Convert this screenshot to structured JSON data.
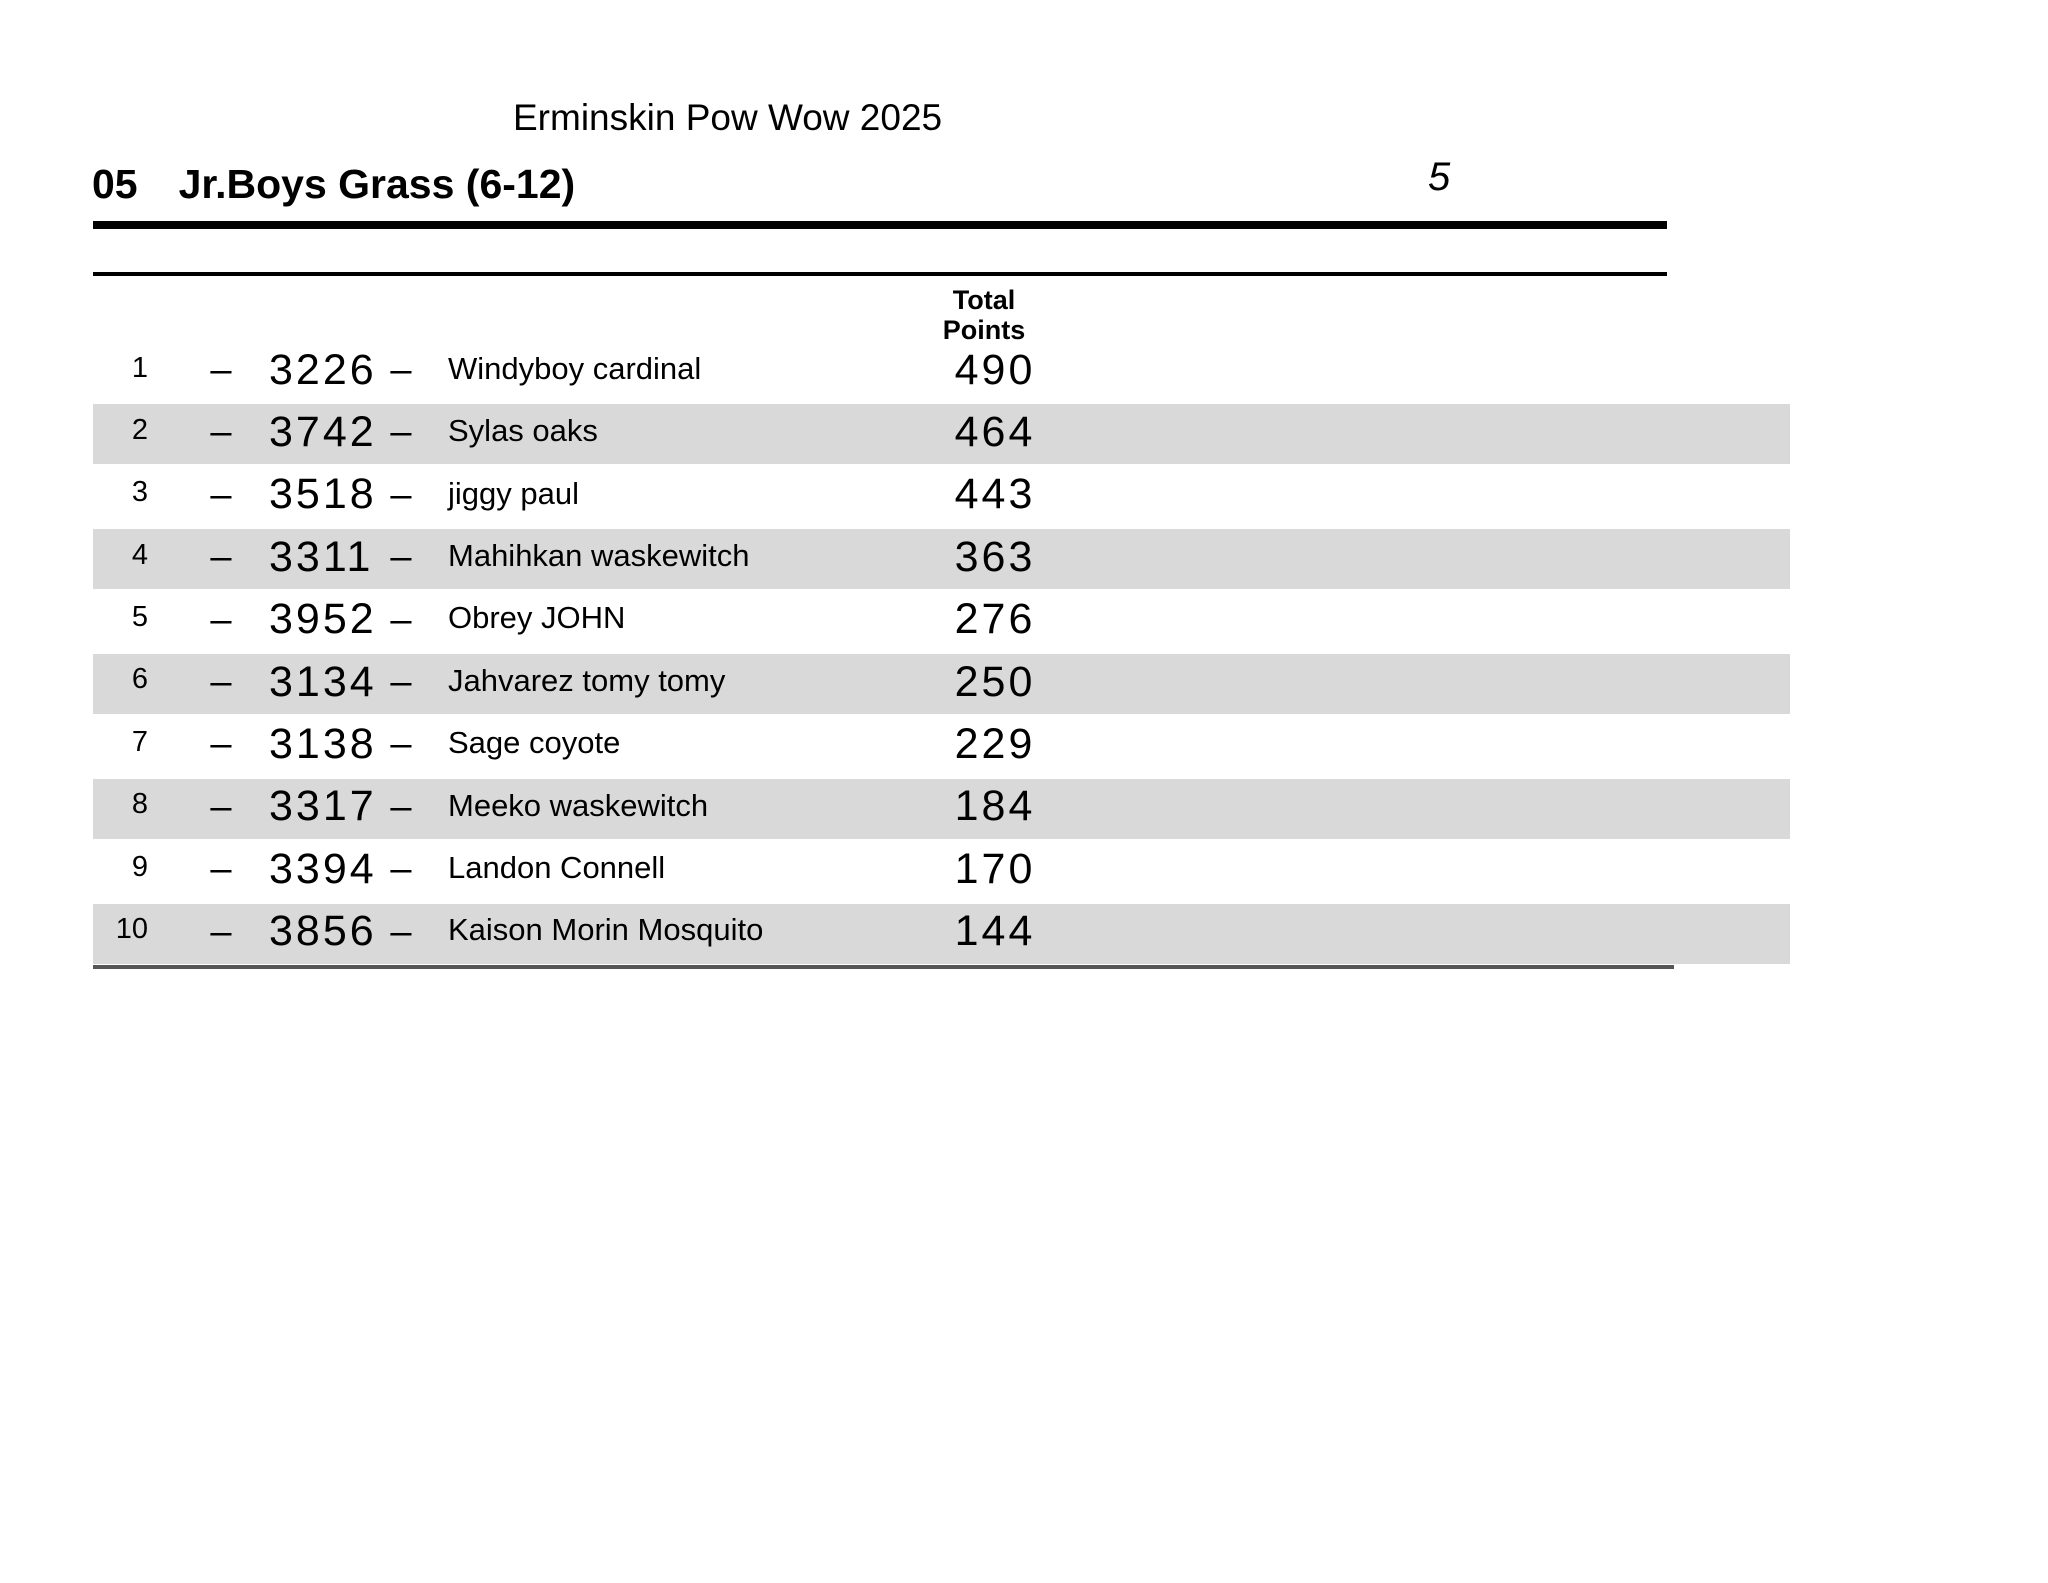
{
  "header": {
    "event_title": "Erminskin Pow Wow 2025",
    "category_number": "05",
    "category_name": "Jr.Boys Grass (6-12)",
    "page_number": "5"
  },
  "table": {
    "points_header_line1": "Total",
    "points_header_line2": "Points",
    "separator": "–",
    "rows": [
      {
        "place": "1",
        "number": "3226",
        "name": "Windyboy cardinal",
        "points": "490"
      },
      {
        "place": "2",
        "number": "3742",
        "name": "Sylas oaks",
        "points": "464"
      },
      {
        "place": "3",
        "number": "3518",
        "name": "jiggy paul",
        "points": "443"
      },
      {
        "place": "4",
        "number": "3311",
        "name": "Mahihkan waskewitch",
        "points": "363"
      },
      {
        "place": "5",
        "number": "3952",
        "name": "Obrey JOHN",
        "points": "276"
      },
      {
        "place": "6",
        "number": "3134",
        "name": "Jahvarez tomy tomy",
        "points": "250"
      },
      {
        "place": "7",
        "number": "3138",
        "name": "Sage coyote",
        "points": "229"
      },
      {
        "place": "8",
        "number": "3317",
        "name": "Meeko waskewitch",
        "points": "184"
      },
      {
        "place": "9",
        "number": "3394",
        "name": "Landon Connell",
        "points": "170"
      },
      {
        "place": "10",
        "number": "3856",
        "name": "Kaison Morin Mosquito",
        "points": "144"
      }
    ]
  },
  "colors": {
    "row_alt": "#d9d9d9",
    "rule": "#000000",
    "bottom_rule": "#565656"
  }
}
